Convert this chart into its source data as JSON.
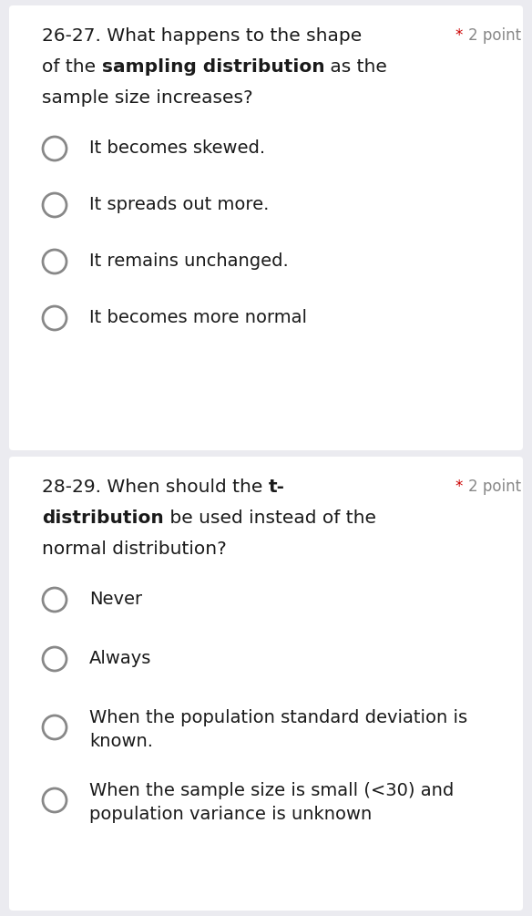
{
  "bg_color": "#ebebf0",
  "card_color": "#ffffff",
  "text_color": "#1a1a1a",
  "circle_edge_color": "#888888",
  "circle_fill_color": "#ffffff",
  "star_color": "#cc0000",
  "point_color": "#888888",
  "q1_number": "26-27.",
  "q1_line1": "What happens to the shape",
  "q1_line2_pre": "of the ",
  "q1_line2_bold": "sampling distribution",
  "q1_line2_post": " as the",
  "q1_line3": "sample size increases?",
  "q1_points": "2 point",
  "q1_options": [
    "It becomes skewed.",
    "It spreads out more.",
    "It remains unchanged.",
    "It becomes more normal"
  ],
  "q2_number": "28-29.",
  "q2_line1_pre": "When should the ",
  "q2_line1_bold": "t-",
  "q2_line2_bold": "distribution",
  "q2_line2_post": " be used instead of the",
  "q2_line3": "normal distribution?",
  "q2_points": "2 point",
  "q2_options": [
    "Never",
    "Always",
    "When the population standard deviation is\nknown.",
    "When the sample size is small (<30) and\npopulation variance is unknown"
  ],
  "font_size_question": 14.5,
  "font_size_options": 14.0,
  "font_size_points": 12.0
}
